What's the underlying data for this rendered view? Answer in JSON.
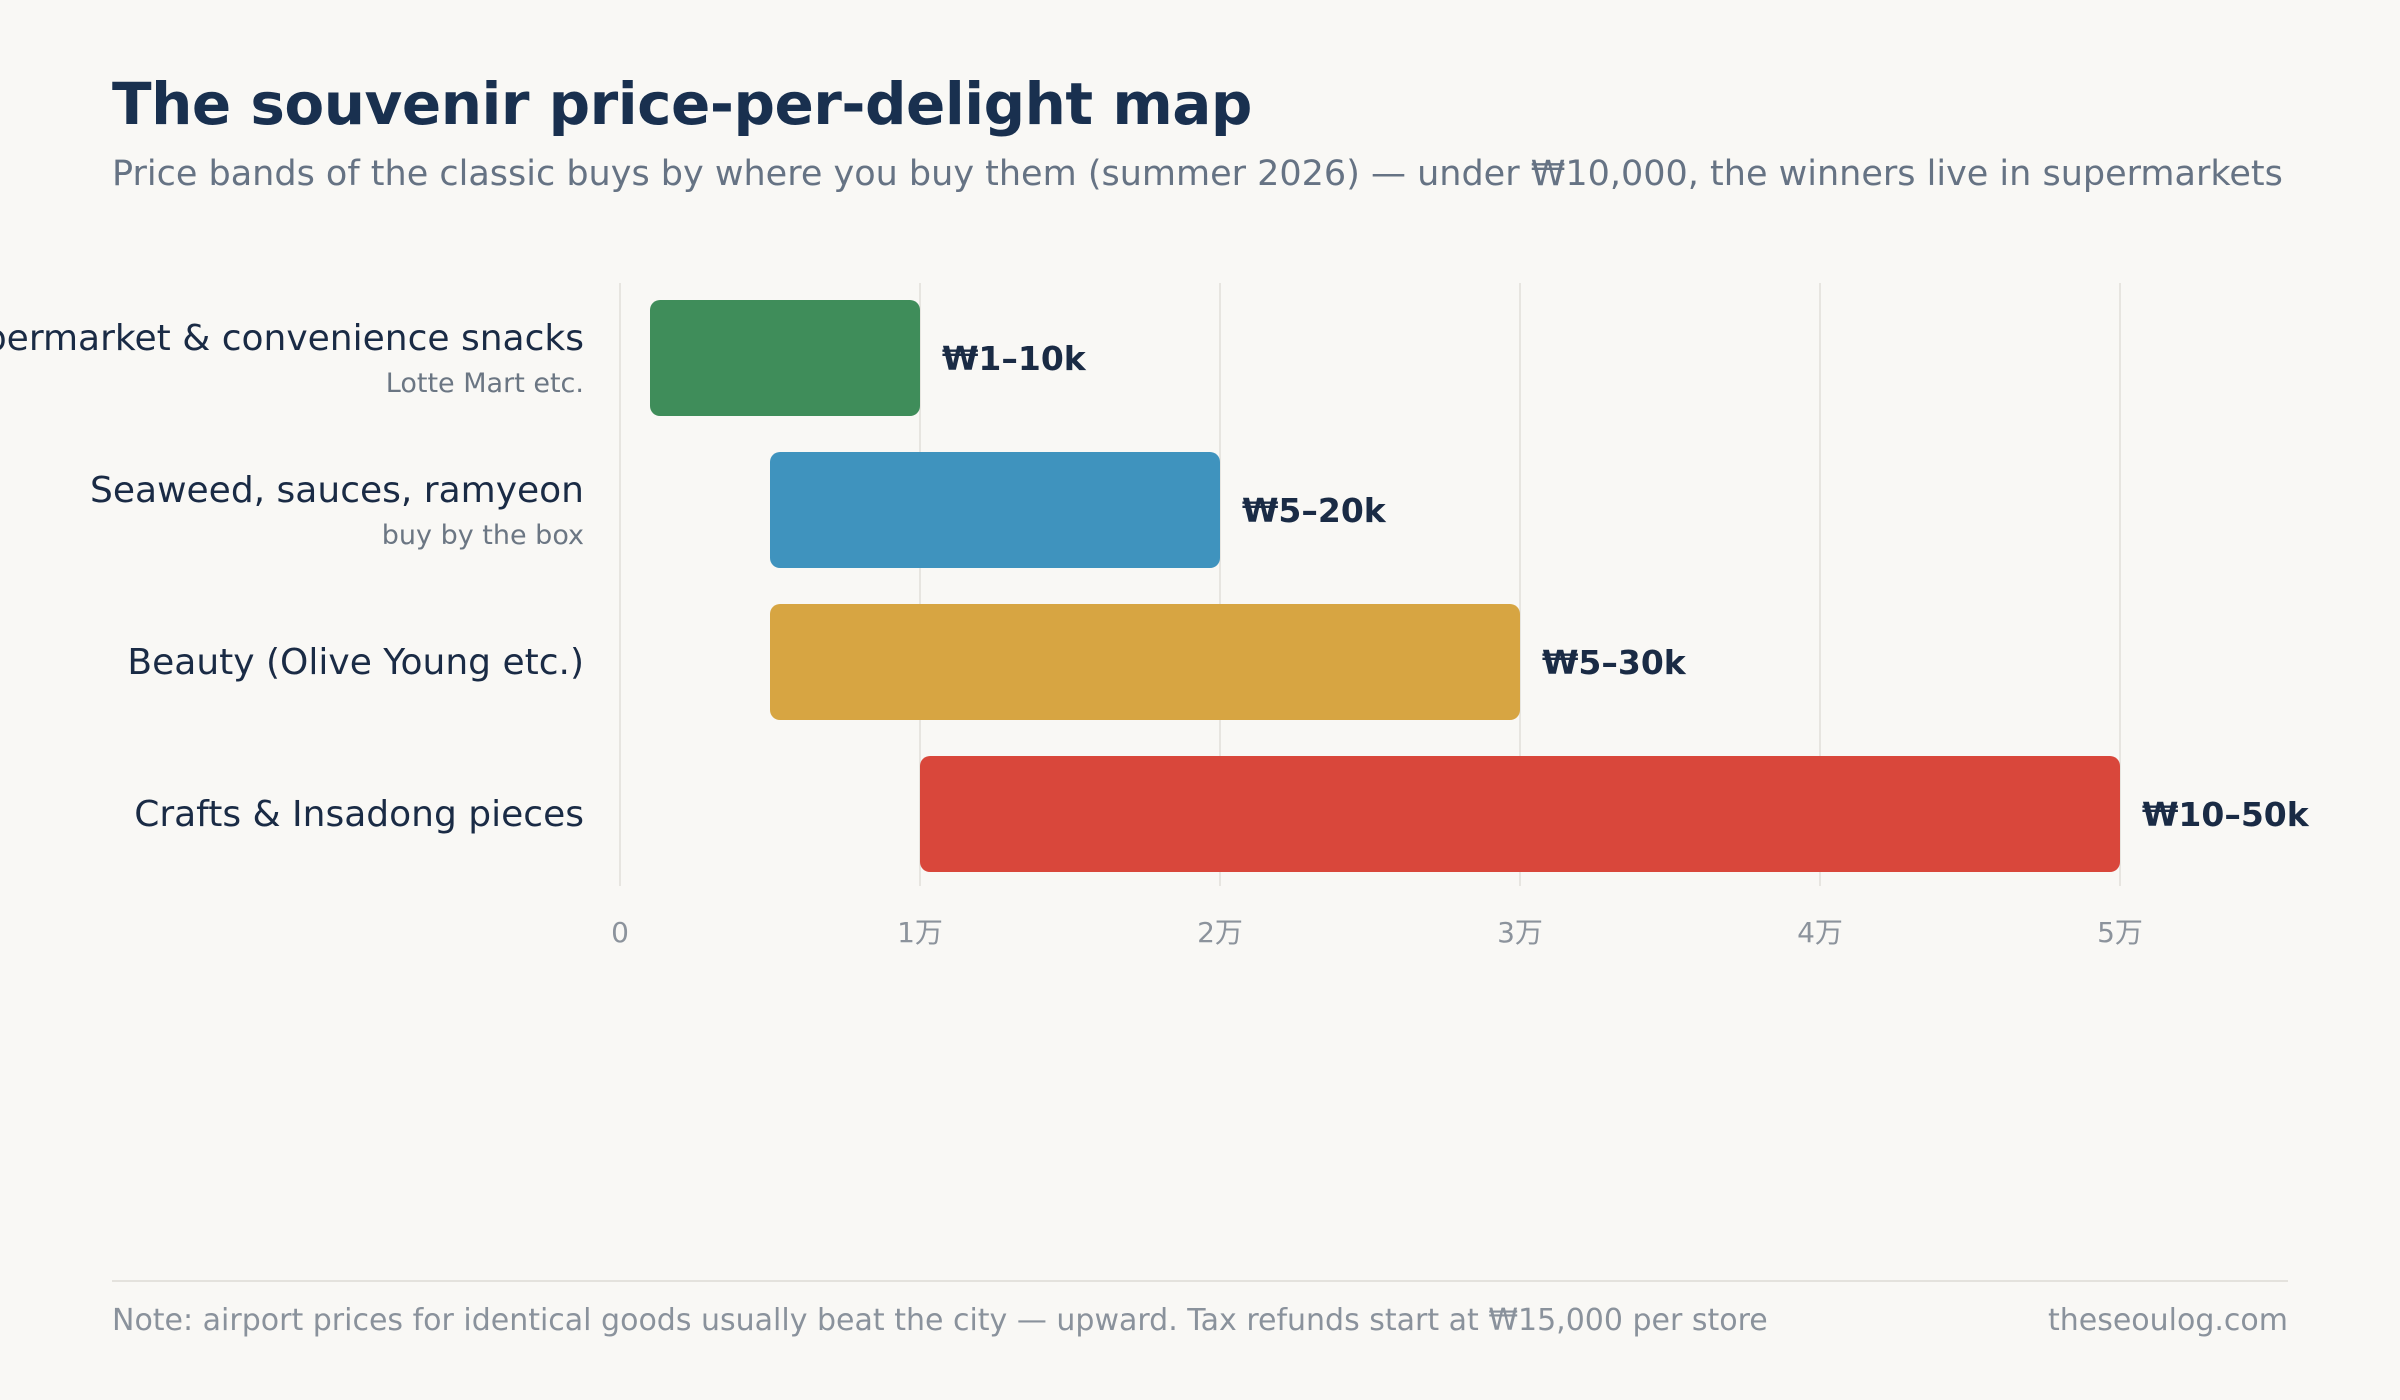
{
  "title": "The souvenir price-per-delight map",
  "subtitle": "Price bands of the classic buys by where you buy them (summer 2026) — under ₩10,000, the winners live in supermarkets",
  "footnote": "Note: airport prices for identical goods usually beat the city — upward. Tax refunds start at ₩15,000 per store",
  "credit": "theseoulog.com",
  "chart_data": {
    "type": "bar",
    "orientation": "horizontal-range",
    "title": "The souvenir price-per-delight map",
    "xlabel": "",
    "ylabel": "",
    "xlim": [
      0,
      50000
    ],
    "xticks": [
      {
        "value": 0,
        "label": "0"
      },
      {
        "value": 10000,
        "label": "1万"
      },
      {
        "value": 20000,
        "label": "2万"
      },
      {
        "value": 30000,
        "label": "3万"
      },
      {
        "value": 40000,
        "label": "4万"
      },
      {
        "value": 50000,
        "label": "5万"
      }
    ],
    "grid": true,
    "legend": "none",
    "categories": [
      {
        "label": "Supermarket & convenience snacks",
        "sublabel": "Lotte Mart etc.",
        "low": 1000,
        "high": 10000,
        "value_label": "₩1–10k",
        "color": "#3f8d5a"
      },
      {
        "label": "Seaweed, sauces, ramyeon",
        "sublabel": "buy by the box",
        "low": 5000,
        "high": 20000,
        "value_label": "₩5–20k",
        "color": "#3f93be"
      },
      {
        "label": "Beauty (Olive Young etc.)",
        "sublabel": "",
        "low": 5000,
        "high": 30000,
        "value_label": "₩5–30k",
        "color": "#d7a542"
      },
      {
        "label": "Crafts & Insadong pieces",
        "sublabel": "",
        "low": 10000,
        "high": 50000,
        "value_label": "₩10–50k",
        "color": "#d9473b"
      }
    ]
  }
}
